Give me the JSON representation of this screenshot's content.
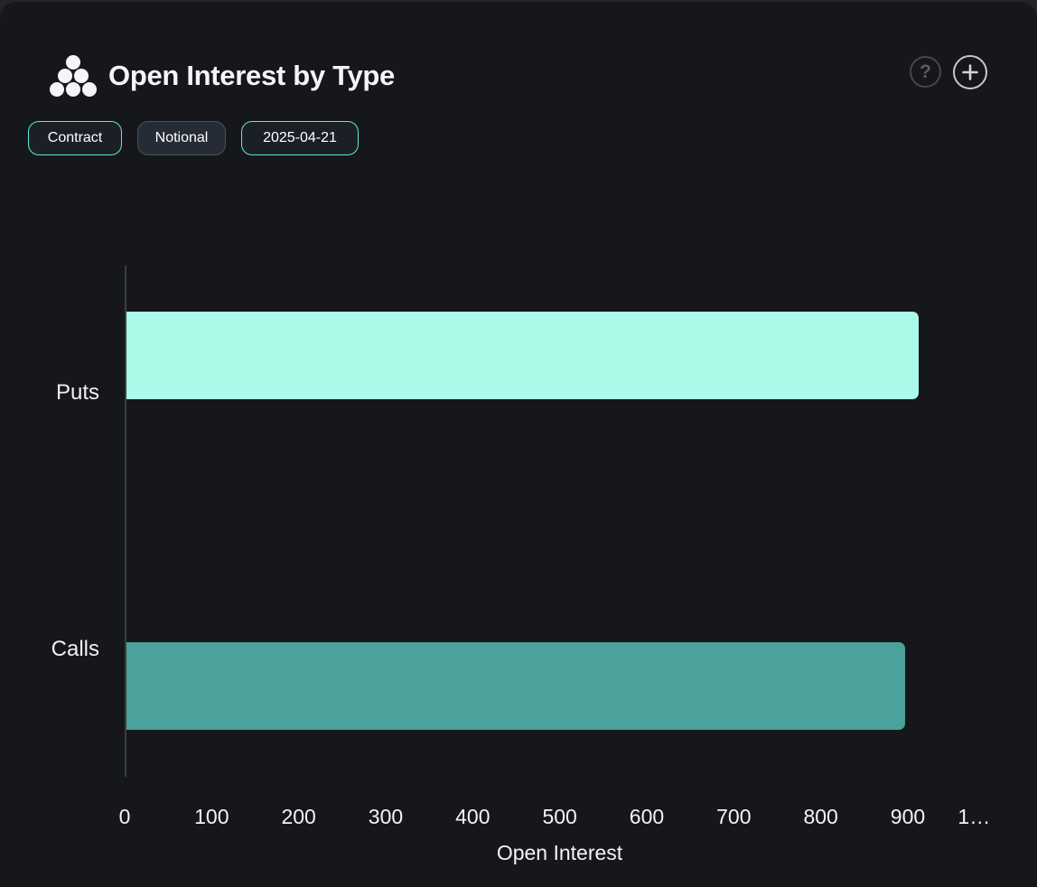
{
  "header": {
    "title": "Open Interest by Type",
    "help_glyph": "?",
    "accent_color": "#5eead4"
  },
  "toolbar": {
    "buttons": [
      {
        "label": "Contract",
        "active": true
      },
      {
        "label": "Notional",
        "active": false
      },
      {
        "label": "2025-04-21",
        "active": true
      }
    ]
  },
  "chart_data": {
    "type": "bar",
    "orientation": "horizontal",
    "title": "Open Interest by Type",
    "categories": [
      "Puts",
      "Calls"
    ],
    "values": [
      910,
      895
    ],
    "bar_colors": [
      "#aafae9",
      "#4aa29a"
    ],
    "xlabel": "Open Interest",
    "ylabel": "",
    "xlim": [
      0,
      1000
    ],
    "x_tick_labels": [
      "0",
      "100",
      "200",
      "300",
      "400",
      "500",
      "600",
      "700",
      "800",
      "900",
      "1…"
    ],
    "grid": false,
    "legend_position": "none"
  }
}
